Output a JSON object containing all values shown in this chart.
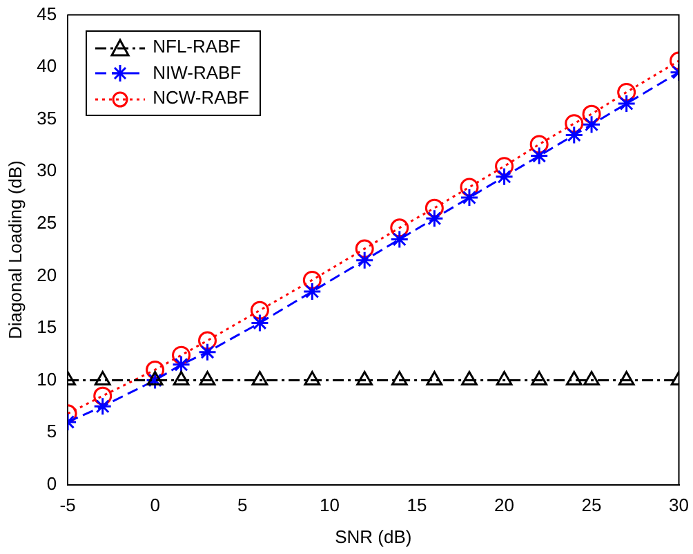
{
  "chart_data": {
    "type": "line",
    "xlabel": "SNR (dB)",
    "ylabel": "Diagonal Loading (dB)",
    "x": [
      -5,
      -3,
      0,
      1.5,
      3,
      6,
      9,
      12,
      14,
      16,
      18,
      20,
      22,
      24,
      25,
      27,
      30
    ],
    "series": [
      {
        "name": "NFL-RABF",
        "color": "#000000",
        "marker": "triangle",
        "line_style": "dashdot",
        "values": [
          10,
          10,
          10,
          10,
          10,
          10,
          10,
          10,
          10,
          10,
          10,
          10,
          10,
          10,
          10,
          10,
          10
        ]
      },
      {
        "name": "NIW-RABF",
        "color": "#0000ff",
        "marker": "cross",
        "line_style": "dashed",
        "values": [
          6,
          7.5,
          10,
          11.5,
          12.7,
          15.5,
          18.5,
          21.5,
          23.5,
          25.5,
          27.5,
          29.5,
          31.5,
          33.5,
          34.5,
          36.5,
          39.5
        ]
      },
      {
        "name": "NCW-RABF",
        "color": "#ff0000",
        "marker": "circle",
        "line_style": "dotted",
        "values": [
          6.8,
          8.5,
          11,
          12.4,
          13.8,
          16.7,
          19.6,
          22.6,
          24.6,
          26.5,
          28.5,
          30.5,
          32.6,
          34.6,
          35.5,
          37.6,
          40.6
        ]
      }
    ],
    "xlim": [
      -5,
      30
    ],
    "xticks": [
      -5,
      0,
      5,
      10,
      15,
      20,
      25,
      30
    ],
    "ylim": [
      0,
      45
    ],
    "yticks": [
      0,
      5,
      10,
      15,
      20,
      25,
      30,
      35,
      40,
      45
    ],
    "grid": false,
    "legend": "top left"
  }
}
